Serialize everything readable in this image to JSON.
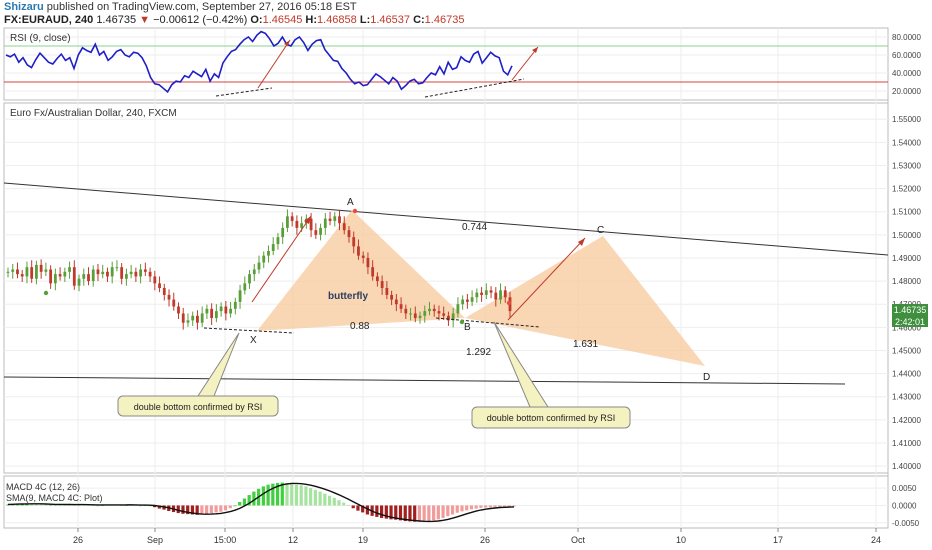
{
  "header": {
    "user": "Shizaru",
    "published": "published on TradingView.com, September 27, 2016 05:18 EST",
    "symbol": "FX:EURAUD, 240",
    "last": "1.46735",
    "change": "−0.00612 (−0.42%)",
    "o_label": "O:",
    "o_val": "1.46545",
    "h_label": "H:",
    "h_val": "1.46858",
    "l_label": "L:",
    "l_val": "1.46537",
    "c_label": "C:",
    "c_val": "1.46735"
  },
  "colors": {
    "bull": "#5a9e3a",
    "bear": "#c0392b",
    "rsi": "#1f1fc8",
    "pattern": "#f7c99b",
    "arrow": "#c0392b",
    "grid": "#eeeeee"
  },
  "rsi_panel": {
    "title": "RSI (9, close)",
    "ticks": [
      "80.0000",
      "60.0000",
      "40.0000",
      "20.0000"
    ],
    "tick_values": [
      80,
      60,
      40,
      20
    ],
    "upper_level": 70,
    "lower_level": 30
  },
  "main_panel": {
    "title": "Euro Fx/Australian Dollar, 240, FXCM",
    "ticks": [
      "1.55000",
      "1.54000",
      "1.53000",
      "1.52000",
      "1.51000",
      "1.50000",
      "1.49000",
      "1.48000",
      "1.47000",
      "1.46000",
      "1.45000",
      "1.44000",
      "1.43000",
      "1.42000",
      "1.41000",
      "1.40000"
    ],
    "tick_values": [
      1.55,
      1.54,
      1.53,
      1.52,
      1.51,
      1.5,
      1.49,
      1.48,
      1.47,
      1.46,
      1.45,
      1.44,
      1.43,
      1.42,
      1.41,
      1.4
    ],
    "price_label": "1.46735",
    "countdown": "2:42:01",
    "points": {
      "X": "X",
      "A": "A",
      "B": "B",
      "C": "C",
      "D": "D"
    },
    "ratios": {
      "xab": "0.744",
      "xb": "0.88",
      "bc": "1.292",
      "cd": "1.631"
    },
    "pattern_label": "butterfly",
    "callout_left": "double bottom confirmed by RSI",
    "callout_right": "double bottom confirmed by RSI"
  },
  "macd_panel": {
    "title": "MACD 4C (12, 26)",
    "subtitle": "SMA(9, MACD 4C: Plot)",
    "ticks": [
      "0.0050",
      "0.0000",
      "-0.0050"
    ],
    "tick_values": [
      0.005,
      0,
      -0.005
    ]
  },
  "x_axis": {
    "labels": [
      "26",
      "Sep",
      "15:00",
      "12",
      "19",
      "26",
      "Oct",
      "10",
      "17",
      "24"
    ]
  },
  "chart_data": {
    "type": "line",
    "series": [
      {
        "name": "RSI (9, close)",
        "values": [
          60,
          58,
          61,
          52,
          57,
          49,
          46,
          55,
          62,
          57,
          52,
          50,
          56,
          61,
          54,
          57,
          45,
          60,
          68,
          65,
          63,
          72,
          60,
          64,
          54,
          58,
          64,
          66,
          60,
          58,
          63,
          62,
          57,
          48,
          35,
          28,
          27,
          23,
          19,
          27,
          31,
          30,
          37,
          35,
          42,
          39,
          36,
          44,
          31,
          39,
          35,
          51,
          58,
          64,
          66,
          72,
          77,
          80,
          75,
          82,
          86,
          84,
          78,
          70,
          73,
          80,
          72,
          70,
          77,
          80,
          74,
          65,
          72,
          76,
          77,
          66,
          60,
          54,
          53,
          45,
          40,
          33,
          28,
          30,
          26,
          27,
          33,
          39,
          36,
          32,
          28,
          35,
          31,
          22,
          26,
          31,
          33,
          28,
          29,
          35,
          40,
          38,
          47,
          39,
          52,
          44,
          46,
          58,
          54,
          52,
          61,
          64,
          51,
          57,
          63,
          59,
          57,
          42,
          38,
          48
        ]
      },
      {
        "name": "EURAUD 240 close (approx.)",
        "values": [
          1.484,
          1.485,
          1.483,
          1.482,
          1.486,
          1.481,
          1.487,
          1.484,
          1.485,
          1.479,
          1.483,
          1.482,
          1.484,
          1.486,
          1.478,
          1.481,
          1.483,
          1.48,
          1.485,
          1.483,
          1.484,
          1.482,
          1.486,
          1.486,
          1.481,
          1.483,
          1.484,
          1.482,
          1.485,
          1.484,
          1.482,
          1.479,
          1.477,
          1.474,
          1.472,
          1.469,
          1.466,
          1.462,
          1.463,
          1.465,
          1.462,
          1.466,
          1.468,
          1.464,
          1.467,
          1.469,
          1.466,
          1.468,
          1.471,
          1.476,
          1.479,
          1.483,
          1.485,
          1.488,
          1.491,
          1.493,
          1.496,
          1.499,
          1.503,
          1.508,
          1.506,
          1.503,
          1.505,
          1.507,
          1.502,
          1.5,
          1.503,
          1.507,
          1.506,
          1.508,
          1.505,
          1.502,
          1.499,
          1.495,
          1.491,
          1.49,
          1.486,
          1.482,
          1.48,
          1.477,
          1.474,
          1.472,
          1.47,
          1.468,
          1.466,
          1.466,
          1.464,
          1.465,
          1.467,
          1.468,
          1.467,
          1.466,
          1.465,
          1.463,
          1.466,
          1.47,
          1.472,
          1.471,
          1.473,
          1.475,
          1.474,
          1.476,
          1.475,
          1.472,
          1.476,
          1.473,
          1.467
        ]
      },
      {
        "name": "MACD 4C histogram (approx.)",
        "values": [
          0.0003,
          0.0004,
          0.0005,
          0.0005,
          0.0006,
          0.0005,
          0.0004,
          0.0003,
          0.0002,
          0.0002,
          0.0003,
          0.0004,
          0.0003,
          0.0002,
          0.0001,
          0.0002,
          0.0003,
          0.0002,
          0.0001,
          0.0,
          0.0001,
          0.0002,
          0.0003,
          0.0002,
          0.0001,
          0.0001,
          0.0002,
          0.0001,
          0.0,
          0.0001,
          0.0,
          -0.0005,
          -0.0009,
          -0.0012,
          -0.0016,
          -0.0019,
          -0.0022,
          -0.0024,
          -0.0025,
          -0.0026,
          -0.0027,
          -0.0026,
          -0.0024,
          -0.0022,
          -0.002,
          -0.0018,
          -0.0014,
          -0.0008,
          0.0,
          0.001,
          0.002,
          0.003,
          0.004,
          0.0048,
          0.0055,
          0.006,
          0.0063,
          0.0065,
          0.0066,
          0.0065,
          0.0063,
          0.006,
          0.0058,
          0.0055,
          0.005,
          0.0045,
          0.004,
          0.0034,
          0.0028,
          0.0022,
          0.0015,
          0.0008,
          0.0001,
          -0.0008,
          -0.0015,
          -0.002,
          -0.0026,
          -0.003,
          -0.0033,
          -0.0036,
          -0.0038,
          -0.004,
          -0.0041,
          -0.0043,
          -0.0045,
          -0.0046,
          -0.0047,
          -0.0047,
          -0.0046,
          -0.0045,
          -0.0043,
          -0.004,
          -0.0036,
          -0.0031,
          -0.0026,
          -0.0021,
          -0.0017,
          -0.0014,
          -0.0011,
          -0.0009,
          -0.0007,
          -0.0006,
          -0.0005,
          -0.0005,
          -0.0004,
          -0.0004,
          -0.0004,
          -0.0003
        ]
      }
    ],
    "pattern": {
      "name": "butterfly",
      "points": [
        {
          "label": "X",
          "price": 1.462
        },
        {
          "label": "A",
          "price": 1.51
        },
        {
          "label": "B",
          "price": 1.462
        },
        {
          "label": "C",
          "price": 1.499
        },
        {
          "label": "D",
          "price": 1.442
        }
      ],
      "ratios": [
        0.744,
        0.88,
        1.292,
        1.631
      ]
    },
    "ylim": [
      1.397,
      1.557
    ],
    "rsi_ylim": [
      10,
      90
    ],
    "macd_ylim": [
      -0.0065,
      0.0085
    ]
  }
}
